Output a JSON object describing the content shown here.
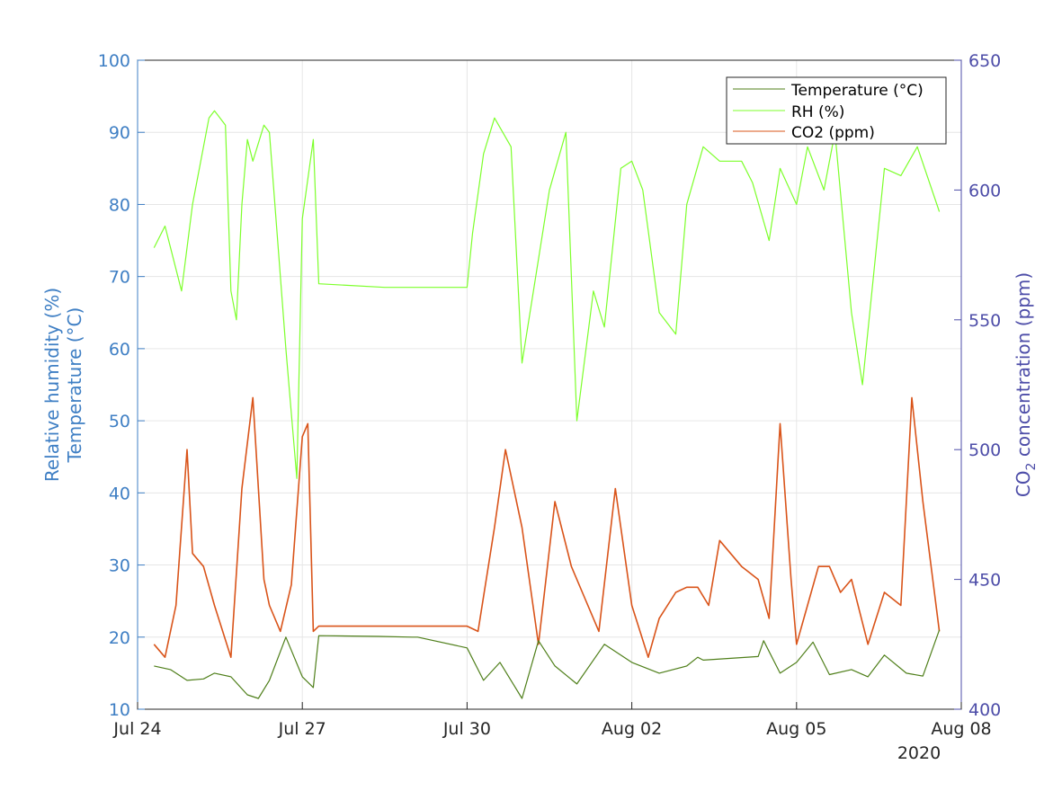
{
  "chart_data": {
    "type": "line",
    "xlabel_year": "2020",
    "x_ticks": [
      "Jul 24",
      "Jul 27",
      "Jul 30",
      "Aug 02",
      "Aug 05",
      "Aug 08"
    ],
    "x_range_days": [
      0,
      15
    ],
    "ylabel_left_line1": "Relative humidity (%)",
    "ylabel_left_line2": "Temperature (°C)",
    "ylabel_right_main": "CO",
    "ylabel_right_sub": "2",
    "ylabel_right_rest": " concentration (ppm)",
    "ylim_left": [
      10,
      100
    ],
    "ylim_right": [
      400,
      650
    ],
    "left_ticks": [
      "10",
      "20",
      "30",
      "40",
      "50",
      "60",
      "70",
      "80",
      "90",
      "100"
    ],
    "right_ticks": [
      "400",
      "450",
      "500",
      "550",
      "600",
      "650"
    ],
    "grid": true,
    "legend_position": "top-right",
    "colors": {
      "left_axis": "#3f7fc4",
      "right_axis": "#4d4da8",
      "temperature": "#4f7f1a",
      "rh": "#7dff2b",
      "co2": "#d9541a",
      "grid": "#e6e6e6"
    },
    "series": [
      {
        "name": "Temperature (°C)",
        "axis": "left",
        "x": [
          0.3,
          0.6,
          0.9,
          1.2,
          1.4,
          1.7,
          2.0,
          2.2,
          2.4,
          2.7,
          3.0,
          3.2,
          3.3,
          4.4,
          5.0,
          5.1,
          6.0,
          6.3,
          6.6,
          7.0,
          7.3,
          7.6,
          8.0,
          8.5,
          9.0,
          9.5,
          10.0,
          10.2,
          10.3,
          11.3,
          11.4,
          11.7,
          12.0,
          12.3,
          12.6,
          13.0,
          13.3,
          13.6,
          14.0,
          14.3,
          14.6
        ],
        "values": [
          16,
          15.5,
          14,
          14.2,
          15,
          14.5,
          12,
          11.5,
          14,
          20,
          14.5,
          13,
          20.2,
          20.1,
          20,
          20,
          18.5,
          14,
          16.5,
          11.5,
          19.5,
          16,
          13.5,
          19,
          16.5,
          15,
          16,
          17.2,
          16.8,
          17.3,
          19.5,
          15,
          16.5,
          19.3,
          14.8,
          15.5,
          14.5,
          17.5,
          15,
          14.6,
          21
        ]
      },
      {
        "name": "RH (%)",
        "axis": "left",
        "x": [
          0.3,
          0.5,
          0.8,
          1.0,
          1.1,
          1.3,
          1.4,
          1.6,
          1.7,
          1.8,
          1.9,
          2.0,
          2.1,
          2.3,
          2.4,
          2.7,
          2.9,
          3.0,
          3.2,
          3.3,
          4.5,
          6.0,
          6.1,
          6.3,
          6.5,
          6.8,
          7.0,
          7.5,
          7.8,
          8.0,
          8.3,
          8.5,
          8.8,
          9.0,
          9.2,
          9.5,
          9.8,
          10.0,
          10.3,
          10.6,
          11.0,
          11.2,
          11.5,
          11.7,
          12.0,
          12.2,
          12.5,
          12.7,
          13.0,
          13.2,
          13.6,
          13.9,
          14.2,
          14.6
        ],
        "values": [
          74,
          77,
          68,
          80,
          84,
          92,
          93,
          91,
          68,
          64,
          80,
          89,
          86,
          91,
          90,
          60,
          42,
          78,
          89,
          69,
          68.5,
          68.5,
          76,
          87,
          92,
          88,
          58,
          82,
          90,
          50,
          68,
          63,
          85,
          86,
          82,
          65,
          62,
          80,
          88,
          86,
          86,
          83,
          75,
          85,
          80,
          88,
          82,
          90,
          65,
          55,
          85,
          84,
          88,
          79
        ]
      },
      {
        "name": "CO2 (ppm)",
        "axis": "right",
        "x": [
          0.3,
          0.5,
          0.7,
          0.9,
          1.0,
          1.2,
          1.4,
          1.7,
          1.9,
          2.1,
          2.3,
          2.4,
          2.6,
          2.8,
          3.0,
          3.1,
          3.2,
          3.3,
          6.0,
          6.2,
          6.5,
          6.7,
          7.0,
          7.3,
          7.6,
          7.9,
          8.1,
          8.4,
          8.7,
          9.0,
          9.3,
          9.5,
          9.8,
          10.0,
          10.2,
          10.4,
          10.6,
          11.0,
          11.3,
          11.5,
          11.7,
          11.9,
          12.0,
          12.2,
          12.4,
          12.6,
          12.8,
          13.0,
          13.3,
          13.6,
          13.9,
          14.1,
          14.3,
          14.6
        ],
        "values": [
          425,
          420,
          440,
          500,
          460,
          455,
          440,
          420,
          485,
          520,
          450,
          440,
          430,
          448,
          505,
          510,
          430,
          432,
          432,
          430,
          470,
          500,
          470,
          425,
          480,
          455,
          445,
          430,
          485,
          440,
          420,
          435,
          445,
          447,
          447,
          440,
          465,
          455,
          450,
          435,
          510,
          450,
          425,
          440,
          455,
          455,
          445,
          450,
          425,
          445,
          440,
          520,
          480,
          430
        ]
      }
    ]
  }
}
